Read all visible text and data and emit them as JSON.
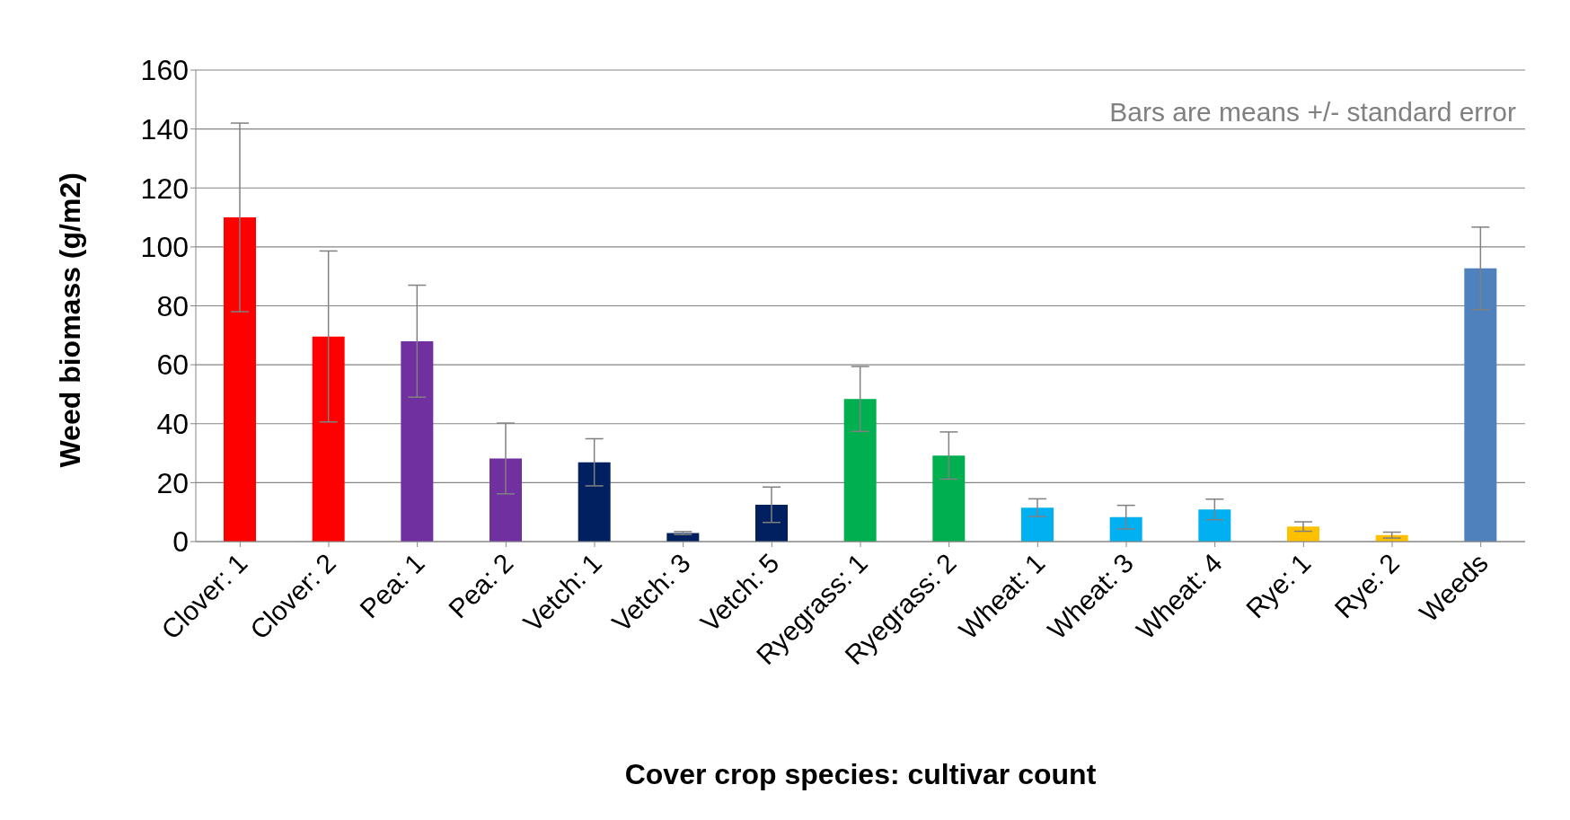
{
  "chart_data": {
    "type": "bar",
    "xlabel": "Cover crop species: cultivar count",
    "ylabel": "Weed biomass (g/m2)",
    "categories": [
      "Clover: 1",
      "Clover: 2",
      "Pea: 1",
      "Pea: 2",
      "Vetch: 1",
      "Vetch: 3",
      "Vetch: 5",
      "Ryegrass: 1",
      "Ryegrass: 2",
      "Wheat: 1",
      "Wheat: 3",
      "Wheat: 4",
      "Rye: 1",
      "Rye: 2",
      "Weeds"
    ],
    "values": [
      110,
      69.6,
      68,
      28.2,
      26.9,
      2.9,
      12.5,
      48.4,
      29.2,
      11.5,
      8.3,
      10.9,
      5.1,
      2.2,
      92.7
    ],
    "errors": [
      32,
      29,
      19,
      12,
      8,
      0.5,
      6,
      11,
      8,
      3,
      4,
      3.5,
      1.6,
      1,
      14
    ],
    "colors": [
      "#ff0000",
      "#ff0000",
      "#7030a0",
      "#7030a0",
      "#002060",
      "#002060",
      "#002060",
      "#00b050",
      "#00b050",
      "#00b0f0",
      "#00b0f0",
      "#00b0f0",
      "#ffc000",
      "#ffc000",
      "#4f81bd"
    ],
    "ylim": [
      0,
      160
    ],
    "yticks": [
      0,
      20,
      40,
      60,
      80,
      100,
      120,
      140,
      160
    ],
    "grid": "y",
    "annotations": [
      "Bars are means +/- standard error"
    ]
  }
}
